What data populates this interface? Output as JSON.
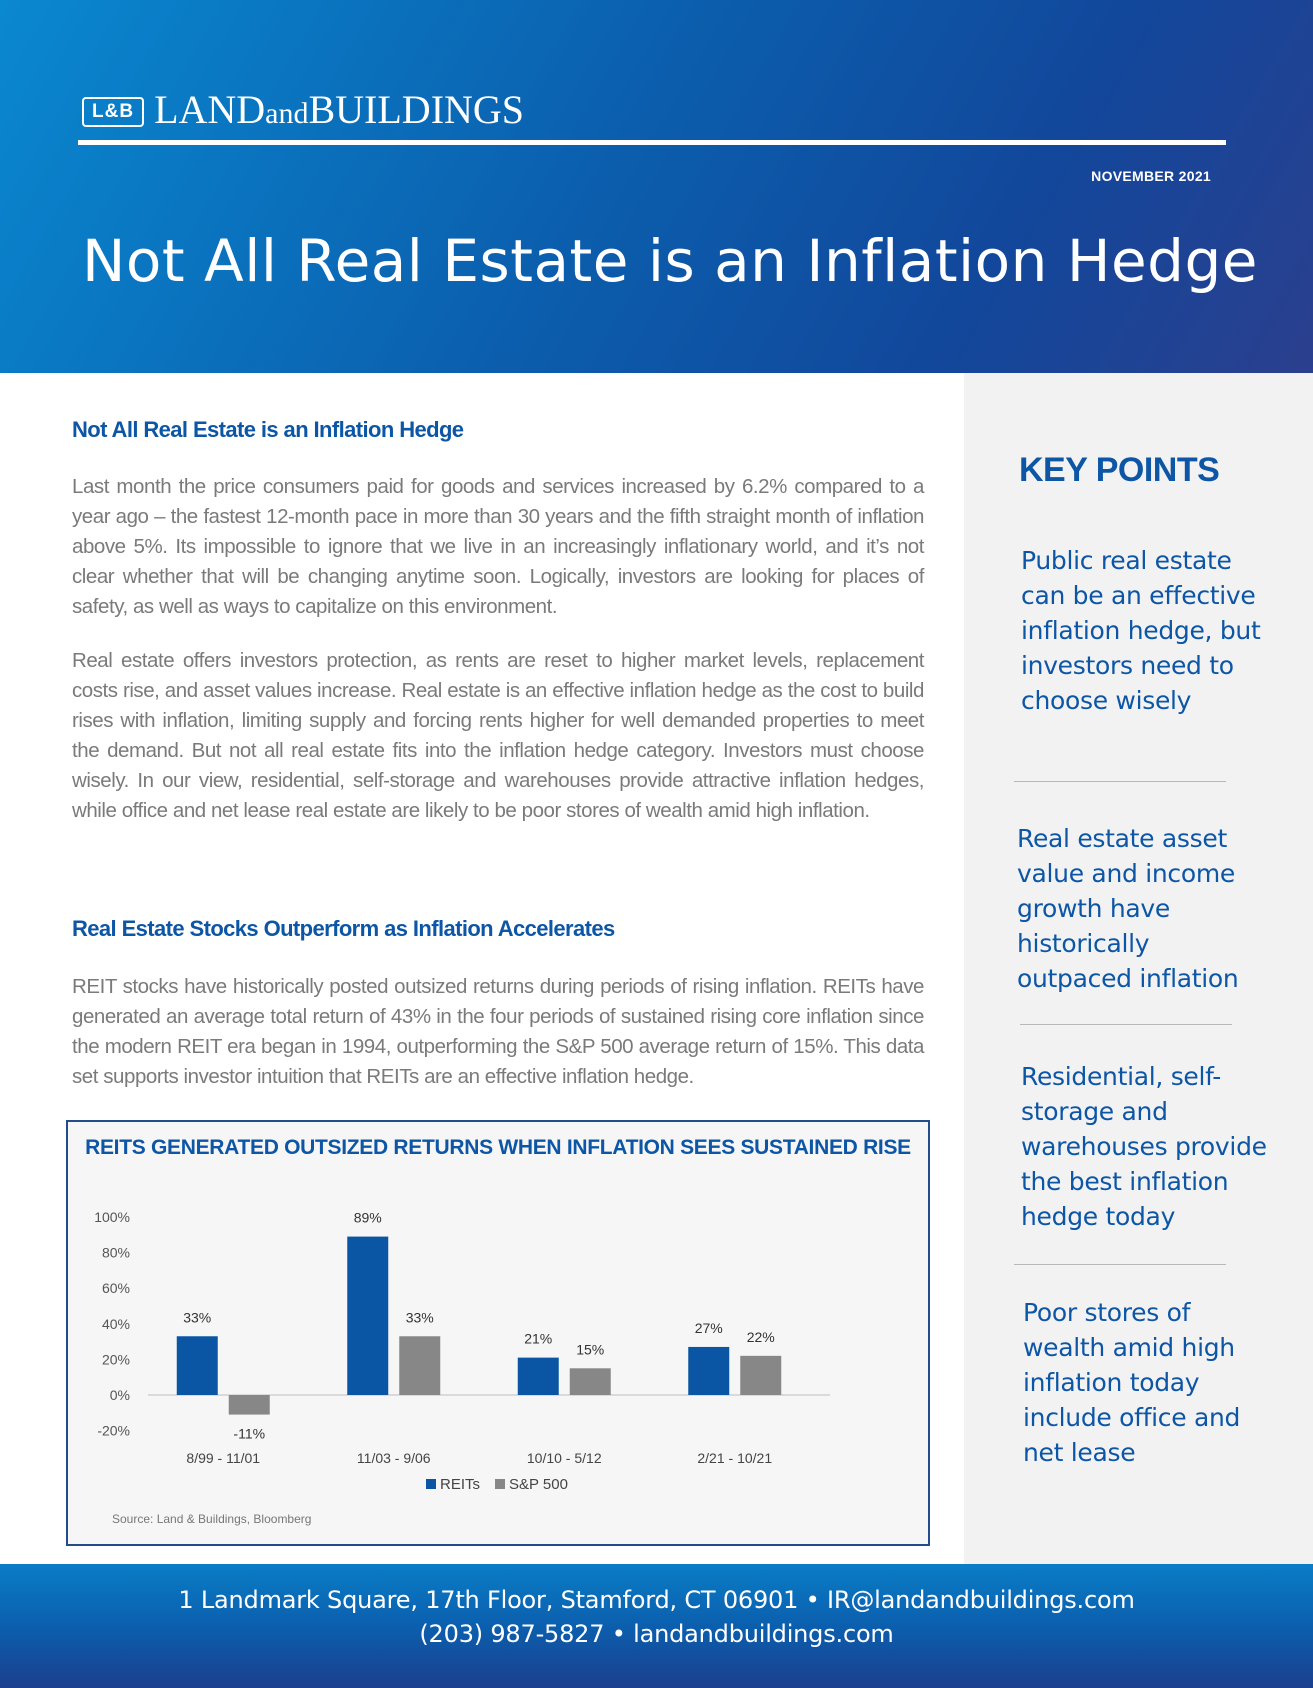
{
  "header": {
    "logo_mark": "L&B",
    "logo_text_part1": "LAND",
    "logo_text_part2": "and",
    "logo_text_part3": "BUILDINGS",
    "date": "NOVEMBER 2021",
    "title": "Not All Real Estate is an Inflation Hedge"
  },
  "main": {
    "section1_heading": "Not All Real Estate is an Inflation Hedge",
    "para1": "Last month the price consumers paid for goods and services increased by 6.2% compared to a year ago – the fastest 12-month pace in more than 30 years and the fifth straight month of inflation above 5%. Its impossible to ignore that we live in an increasingly inflationary world, and it’s not clear whether that will be changing anytime soon. Logically, investors are looking for places of safety, as well as ways to capitalize on this environment.",
    "para2": "Real estate offers investors protection, as rents are reset to higher market levels, replacement costs rise, and asset values increase. Real estate is an effective inflation hedge as the cost to build rises with inflation, limiting supply and forcing rents higher for well demanded properties to meet the demand. But not all real estate fits into the inflation hedge category. Investors must choose wisely. In our view, residential, self-storage and warehouses provide attractive inflation hedges, while office and net lease real estate are likely to be poor stores of wealth amid high inflation.",
    "section2_heading": "Real Estate Stocks Outperform as Inflation Accelerates",
    "para3": "REIT stocks have historically posted outsized returns during periods of rising inflation. REITs have generated an average total return of 43% in the four periods of sustained rising core inflation since the modern REIT era began in 1994, outperforming the S&P 500 average return of 15%. This data set supports investor intuition that REITs are an effective inflation hedge."
  },
  "sidebar": {
    "heading": "KEY POINTS",
    "points": [
      "Public real estate can be an effective inflation hedge, but investors need to choose wisely",
      "Real estate asset value and income growth have historically outpaced inflation",
      "Residential, self-storage and warehouses provide the best inflation hedge today",
      "Poor stores of wealth amid high inflation today include office and net lease"
    ]
  },
  "chart_data": {
    "type": "bar",
    "title": "REITS GENERATED OUTSIZED RETURNS WHEN INFLATION SEES SUSTAINED RISE",
    "categories": [
      "8/99 - 11/01",
      "11/03 - 9/06",
      "10/10 - 5/12",
      "2/21 - 10/21"
    ],
    "series": [
      {
        "name": "REITs",
        "values": [
          33,
          89,
          21,
          27
        ],
        "labels": [
          "33%",
          "89%",
          "21%",
          "27%"
        ],
        "color": "#0b56a4"
      },
      {
        "name": "S&P 500",
        "values": [
          -11,
          33,
          15,
          22
        ],
        "labels": [
          "-11%",
          "33%",
          "15%",
          "22%"
        ],
        "color": "#878787"
      }
    ],
    "yticks": [
      "100%",
      "80%",
      "60%",
      "40%",
      "20%",
      "0%",
      "-20%"
    ],
    "ytick_values": [
      100,
      80,
      60,
      40,
      20,
      0,
      -20
    ],
    "ylim": [
      -20,
      100
    ],
    "legend": "bottom-center",
    "grid": false,
    "source": "Source: Land & Buildings, Bloomberg"
  },
  "footer": {
    "line1": "1 Landmark Square, 17th Floor, Stamford, CT 06901 • IR@landandbuildings.com",
    "line2": "(203) 987-5827 • landandbuildings.com"
  }
}
